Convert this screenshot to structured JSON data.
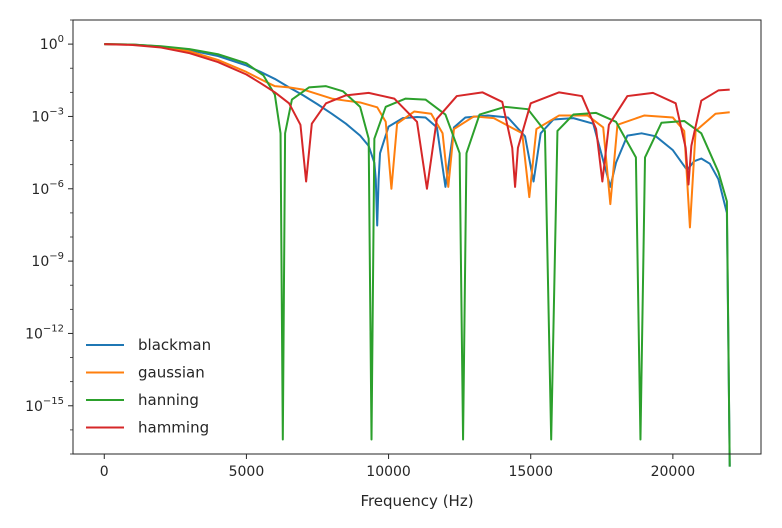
{
  "chart_data": {
    "type": "line",
    "title": "",
    "xlabel": "Frequency (Hz)",
    "ylabel": "",
    "yscale": "log",
    "xlim": [
      -1100,
      23100
    ],
    "ylim": [
      1e-17,
      10
    ],
    "x_ticks": [
      0,
      5000,
      10000,
      15000,
      20000
    ],
    "x_tick_labels": [
      "0",
      "5000",
      "10000",
      "15000",
      "20000"
    ],
    "y_ticks": [
      1,
      0.001,
      1e-06,
      1e-09,
      1e-12,
      1e-15
    ],
    "y_tick_labels": [
      {
        "base": "10",
        "exp": "0"
      },
      {
        "base": "10",
        "exp": "−3"
      },
      {
        "base": "10",
        "exp": "−6"
      },
      {
        "base": "10",
        "exp": "−9"
      },
      {
        "base": "10",
        "exp": "−12"
      },
      {
        "base": "10",
        "exp": "−15"
      }
    ],
    "grid": false,
    "legend_position": "lower-left",
    "series": [
      {
        "name": "blackman",
        "color": "#1f77b4",
        "points": [
          [
            0,
            1.0
          ],
          [
            1000,
            0.96
          ],
          [
            2000,
            0.8
          ],
          [
            3000,
            0.56
          ],
          [
            4000,
            0.32
          ],
          [
            5000,
            0.13
          ],
          [
            5500,
            0.07
          ],
          [
            6000,
            0.036
          ],
          [
            6500,
            0.016
          ],
          [
            7000,
            0.0075
          ],
          [
            7500,
            0.0032
          ],
          [
            8000,
            0.0013
          ],
          [
            8500,
            0.0005
          ],
          [
            9000,
            0.00016
          ],
          [
            9300,
            6e-05
          ],
          [
            9500,
            1.2e-05
          ],
          [
            9550,
            2.5e-06
          ],
          [
            9600,
            3e-08
          ],
          [
            9650,
            2.5e-06
          ],
          [
            9700,
            3e-05
          ],
          [
            10000,
            0.00038
          ],
          [
            10500,
            0.00085
          ],
          [
            11000,
            0.00095
          ],
          [
            11300,
            0.0009
          ],
          [
            11700,
            0.00035
          ],
          [
            12000,
            1.2e-06
          ],
          [
            12300,
            0.00035
          ],
          [
            12700,
            0.0009
          ],
          [
            13500,
            0.0011
          ],
          [
            14200,
            0.0009
          ],
          [
            14800,
            0.00015
          ],
          [
            15100,
            2e-06
          ],
          [
            15350,
            0.0002
          ],
          [
            15800,
            0.00075
          ],
          [
            16500,
            0.00085
          ],
          [
            17200,
            0.0005
          ],
          [
            17800,
            1.2e-06
          ],
          [
            18000,
            1.2e-05
          ],
          [
            18400,
            0.00016
          ],
          [
            18900,
            0.0002
          ],
          [
            19400,
            0.00015
          ],
          [
            20000,
            4e-05
          ],
          [
            20500,
            6e-06
          ],
          [
            20750,
            1.4e-05
          ],
          [
            21000,
            1.8e-05
          ],
          [
            21300,
            1.1e-05
          ],
          [
            21600,
            2.5e-06
          ],
          [
            21900,
            1e-07
          ],
          [
            22000,
            3e-18
          ]
        ]
      },
      {
        "name": "gaussian",
        "color": "#ff7f0e",
        "points": [
          [
            0,
            1.0
          ],
          [
            1000,
            0.95
          ],
          [
            2000,
            0.78
          ],
          [
            3000,
            0.5
          ],
          [
            4000,
            0.22
          ],
          [
            5000,
            0.07
          ],
          [
            5500,
            0.035
          ],
          [
            6000,
            0.018
          ],
          [
            6500,
            0.016
          ],
          [
            7000,
            0.013
          ],
          [
            7500,
            0.0085
          ],
          [
            8000,
            0.0055
          ],
          [
            8500,
            0.0045
          ],
          [
            9000,
            0.0038
          ],
          [
            9600,
            0.0024
          ],
          [
            9900,
            0.0006
          ],
          [
            10100,
            1e-06
          ],
          [
            10300,
            0.0005
          ],
          [
            10900,
            0.0016
          ],
          [
            11500,
            0.0013
          ],
          [
            11900,
            0.0002
          ],
          [
            12100,
            1.2e-06
          ],
          [
            12300,
            0.0003
          ],
          [
            13000,
            0.001
          ],
          [
            13700,
            0.00085
          ],
          [
            14700,
            0.0002
          ],
          [
            14950,
            4.5e-07
          ],
          [
            15200,
            0.0003
          ],
          [
            16000,
            0.0011
          ],
          [
            17000,
            0.0011
          ],
          [
            17550,
            0.00035
          ],
          [
            17800,
            2.3e-07
          ],
          [
            18050,
            0.00045
          ],
          [
            19000,
            0.0011
          ],
          [
            20000,
            0.0009
          ],
          [
            20400,
            0.00025
          ],
          [
            20600,
            2.5e-08
          ],
          [
            20800,
            0.00025
          ],
          [
            21500,
            0.0013
          ],
          [
            22000,
            0.0015
          ]
        ]
      },
      {
        "name": "hanning",
        "color": "#2ca02c",
        "points": [
          [
            0,
            1.0
          ],
          [
            1000,
            0.95
          ],
          [
            2000,
            0.82
          ],
          [
            3000,
            0.62
          ],
          [
            4000,
            0.38
          ],
          [
            5000,
            0.16
          ],
          [
            5600,
            0.05
          ],
          [
            6000,
            0.008
          ],
          [
            6200,
            0.0002
          ],
          [
            6280,
            4e-17
          ],
          [
            6360,
            0.0002
          ],
          [
            6600,
            0.005
          ],
          [
            7200,
            0.016
          ],
          [
            7800,
            0.018
          ],
          [
            8400,
            0.011
          ],
          [
            9000,
            0.0025
          ],
          [
            9300,
            0.00012
          ],
          [
            9400,
            4e-17
          ],
          [
            9500,
            0.00012
          ],
          [
            9900,
            0.0025
          ],
          [
            10600,
            0.0055
          ],
          [
            11300,
            0.005
          ],
          [
            12000,
            0.0012
          ],
          [
            12500,
            3e-05
          ],
          [
            12620,
            4e-17
          ],
          [
            12740,
            3e-05
          ],
          [
            13200,
            0.0012
          ],
          [
            14100,
            0.0025
          ],
          [
            14900,
            0.002
          ],
          [
            15500,
            0.00025
          ],
          [
            15720,
            4e-17
          ],
          [
            15940,
            0.00025
          ],
          [
            16500,
            0.0012
          ],
          [
            17300,
            0.0014
          ],
          [
            18000,
            0.0006
          ],
          [
            18700,
            2e-05
          ],
          [
            18860,
            4e-17
          ],
          [
            19020,
            2e-05
          ],
          [
            19600,
            0.00055
          ],
          [
            20400,
            0.00065
          ],
          [
            21000,
            0.0002
          ],
          [
            21600,
            5e-06
          ],
          [
            21900,
            3e-07
          ],
          [
            22000,
            3e-18
          ]
        ]
      },
      {
        "name": "hamming",
        "color": "#d62728",
        "points": [
          [
            0,
            1.0
          ],
          [
            1000,
            0.92
          ],
          [
            2000,
            0.72
          ],
          [
            3000,
            0.42
          ],
          [
            4000,
            0.18
          ],
          [
            5000,
            0.055
          ],
          [
            5500,
            0.024
          ],
          [
            6000,
            0.01
          ],
          [
            6500,
            0.0035
          ],
          [
            6900,
            0.00045
          ],
          [
            7100,
            2e-06
          ],
          [
            7300,
            0.0005
          ],
          [
            7800,
            0.0035
          ],
          [
            8500,
            0.0075
          ],
          [
            9300,
            0.0095
          ],
          [
            10200,
            0.0055
          ],
          [
            11000,
            0.0006
          ],
          [
            11350,
            1e-06
          ],
          [
            11700,
            0.0008
          ],
          [
            12400,
            0.007
          ],
          [
            13300,
            0.01
          ],
          [
            14000,
            0.004
          ],
          [
            14350,
            5e-05
          ],
          [
            14450,
            1.2e-06
          ],
          [
            14550,
            5e-05
          ],
          [
            15000,
            0.0035
          ],
          [
            16000,
            0.01
          ],
          [
            16800,
            0.007
          ],
          [
            17300,
            0.0003
          ],
          [
            17520,
            2e-06
          ],
          [
            17750,
            0.00045
          ],
          [
            18400,
            0.007
          ],
          [
            19300,
            0.0095
          ],
          [
            20100,
            0.0035
          ],
          [
            20450,
            5e-05
          ],
          [
            20550,
            1.5e-06
          ],
          [
            20650,
            6e-05
          ],
          [
            21000,
            0.0045
          ],
          [
            21600,
            0.012
          ],
          [
            22000,
            0.013
          ]
        ]
      }
    ]
  }
}
